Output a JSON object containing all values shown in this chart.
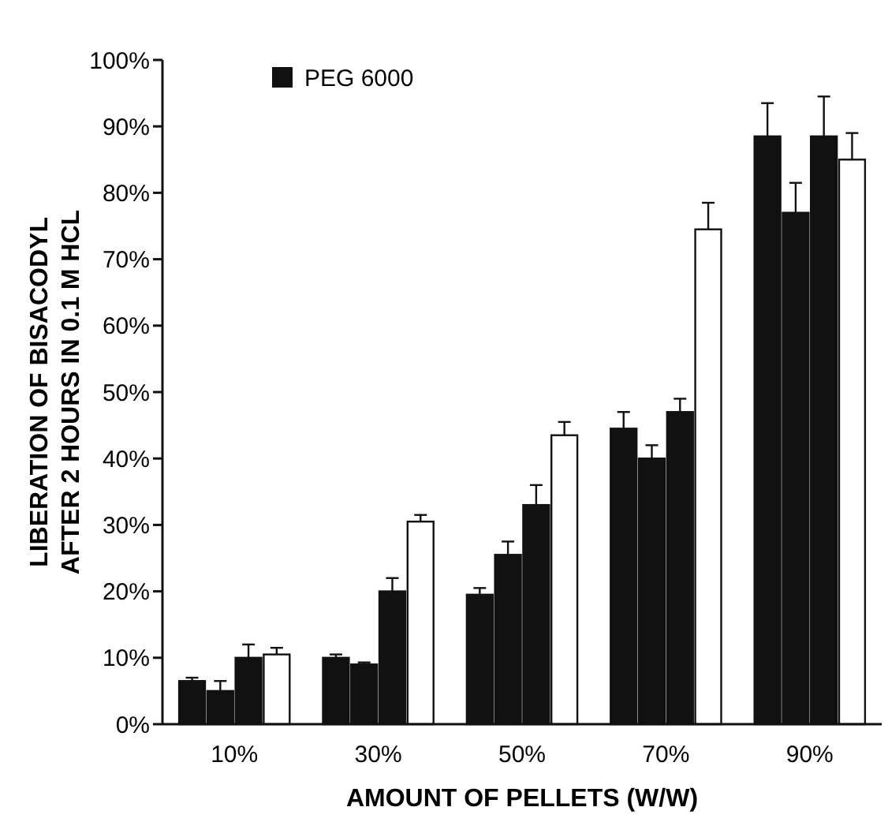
{
  "chart_data": {
    "type": "bar",
    "xlabel": "AMOUNT OF PELLETS (W/W)",
    "ylabel": "LIBERATION OF BISACODYL\nAFTER 2 HOURS IN 0.1 M HCL",
    "categories": [
      "10%",
      "30%",
      "50%",
      "70%",
      "90%"
    ],
    "series": [
      {
        "name": "PEG 6000",
        "color": "#111111",
        "values": [
          6.5,
          10,
          19.5,
          44.5,
          88.5
        ],
        "errors": [
          0.5,
          0.5,
          1,
          2.5,
          5
        ]
      },
      {
        "color": "#111111",
        "values": [
          5,
          9,
          25.5,
          40,
          77
        ],
        "errors": [
          1.5,
          0.3,
          2,
          2,
          4.5
        ]
      },
      {
        "color": "#111111",
        "values": [
          10,
          20,
          33,
          47,
          88.5
        ],
        "errors": [
          2,
          2,
          3,
          2,
          6
        ]
      },
      {
        "color": "#ffffff",
        "values": [
          10.5,
          30.5,
          43.5,
          74.5,
          85
        ],
        "errors": [
          1,
          1,
          2,
          4,
          4
        ]
      }
    ],
    "ylim": [
      0,
      100
    ],
    "yticks": [
      {
        "value": 0,
        "label": "0%"
      },
      {
        "value": 10,
        "label": "10%"
      },
      {
        "value": 20,
        "label": "20%"
      },
      {
        "value": 30,
        "label": "30%"
      },
      {
        "value": 40,
        "label": "40%"
      },
      {
        "value": 50,
        "label": "50%"
      },
      {
        "value": 60,
        "label": "60%"
      },
      {
        "value": 70,
        "label": "70%"
      },
      {
        "value": 80,
        "label": "80%"
      },
      {
        "value": 90,
        "label": "90%"
      },
      {
        "value": 100,
        "label": "100%"
      }
    ],
    "legend": "top left",
    "grid": false
  }
}
